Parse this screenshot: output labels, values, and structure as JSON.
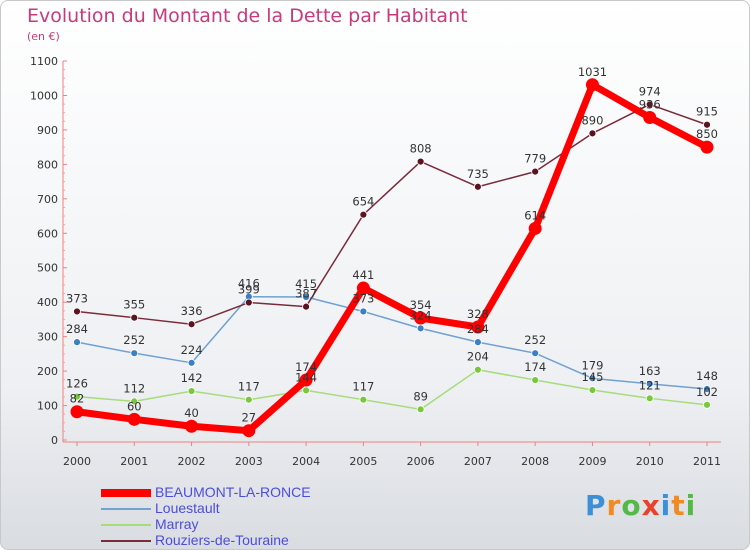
{
  "title": "Evolution du Montant de la Dette par Habitant",
  "unit_label": "(en €)",
  "brand": {
    "text": "Proxiti",
    "letters": [
      "P",
      "r",
      "o",
      "x",
      "i",
      "t",
      "i"
    ],
    "colors": [
      "#3d8fd6",
      "#f08a24",
      "#55b947",
      "#e8412c",
      "#3d8fd6",
      "#f08a24",
      "#55b947"
    ]
  },
  "legend": [
    {
      "name": "BEAUMONT-LA-RONCE",
      "color": "#ff0000"
    },
    {
      "name": "Louestault",
      "color": "#6fa1d2"
    },
    {
      "name": "Marray",
      "color": "#a6dc7a"
    },
    {
      "name": "Rouziers-de-Touraine",
      "color": "#7a2c3a"
    }
  ],
  "chart_data": {
    "type": "line",
    "title": "Evolution du Montant de la Dette par Habitant",
    "ylabel": "(en €)",
    "xlabel": "",
    "x": [
      "2000",
      "2001",
      "2002",
      "2003",
      "2004",
      "2005",
      "2006",
      "2007",
      "2008",
      "2009",
      "2010",
      "2011"
    ],
    "ylim": [
      0,
      1100
    ],
    "yticks": [
      0,
      100,
      200,
      300,
      400,
      500,
      600,
      700,
      800,
      900,
      1000,
      1100
    ],
    "grid": false,
    "legend_position": "bottom-left",
    "series": [
      {
        "name": "BEAUMONT-LA-RONCE",
        "color": "#ff0000",
        "values": [
          82,
          60,
          40,
          27,
          174,
          441,
          354,
          328,
          614,
          1031,
          936,
          850
        ]
      },
      {
        "name": "Louestault",
        "color": "#6fa1d2",
        "marker": "#3b7fc4",
        "values": [
          284,
          252,
          224,
          416,
          415,
          373,
          324,
          284,
          252,
          179,
          163,
          148
        ]
      },
      {
        "name": "Marray",
        "color": "#a6dc7a",
        "marker": "#78c83c",
        "values": [
          126,
          112,
          142,
          117,
          144,
          117,
          89,
          204,
          174,
          145,
          121,
          102
        ]
      },
      {
        "name": "Rouziers-de-Touraine",
        "color": "#7a2c3a",
        "marker": "#5a1420",
        "values": [
          373,
          355,
          336,
          399,
          387,
          654,
          808,
          735,
          779,
          890,
          974,
          915
        ]
      }
    ]
  }
}
